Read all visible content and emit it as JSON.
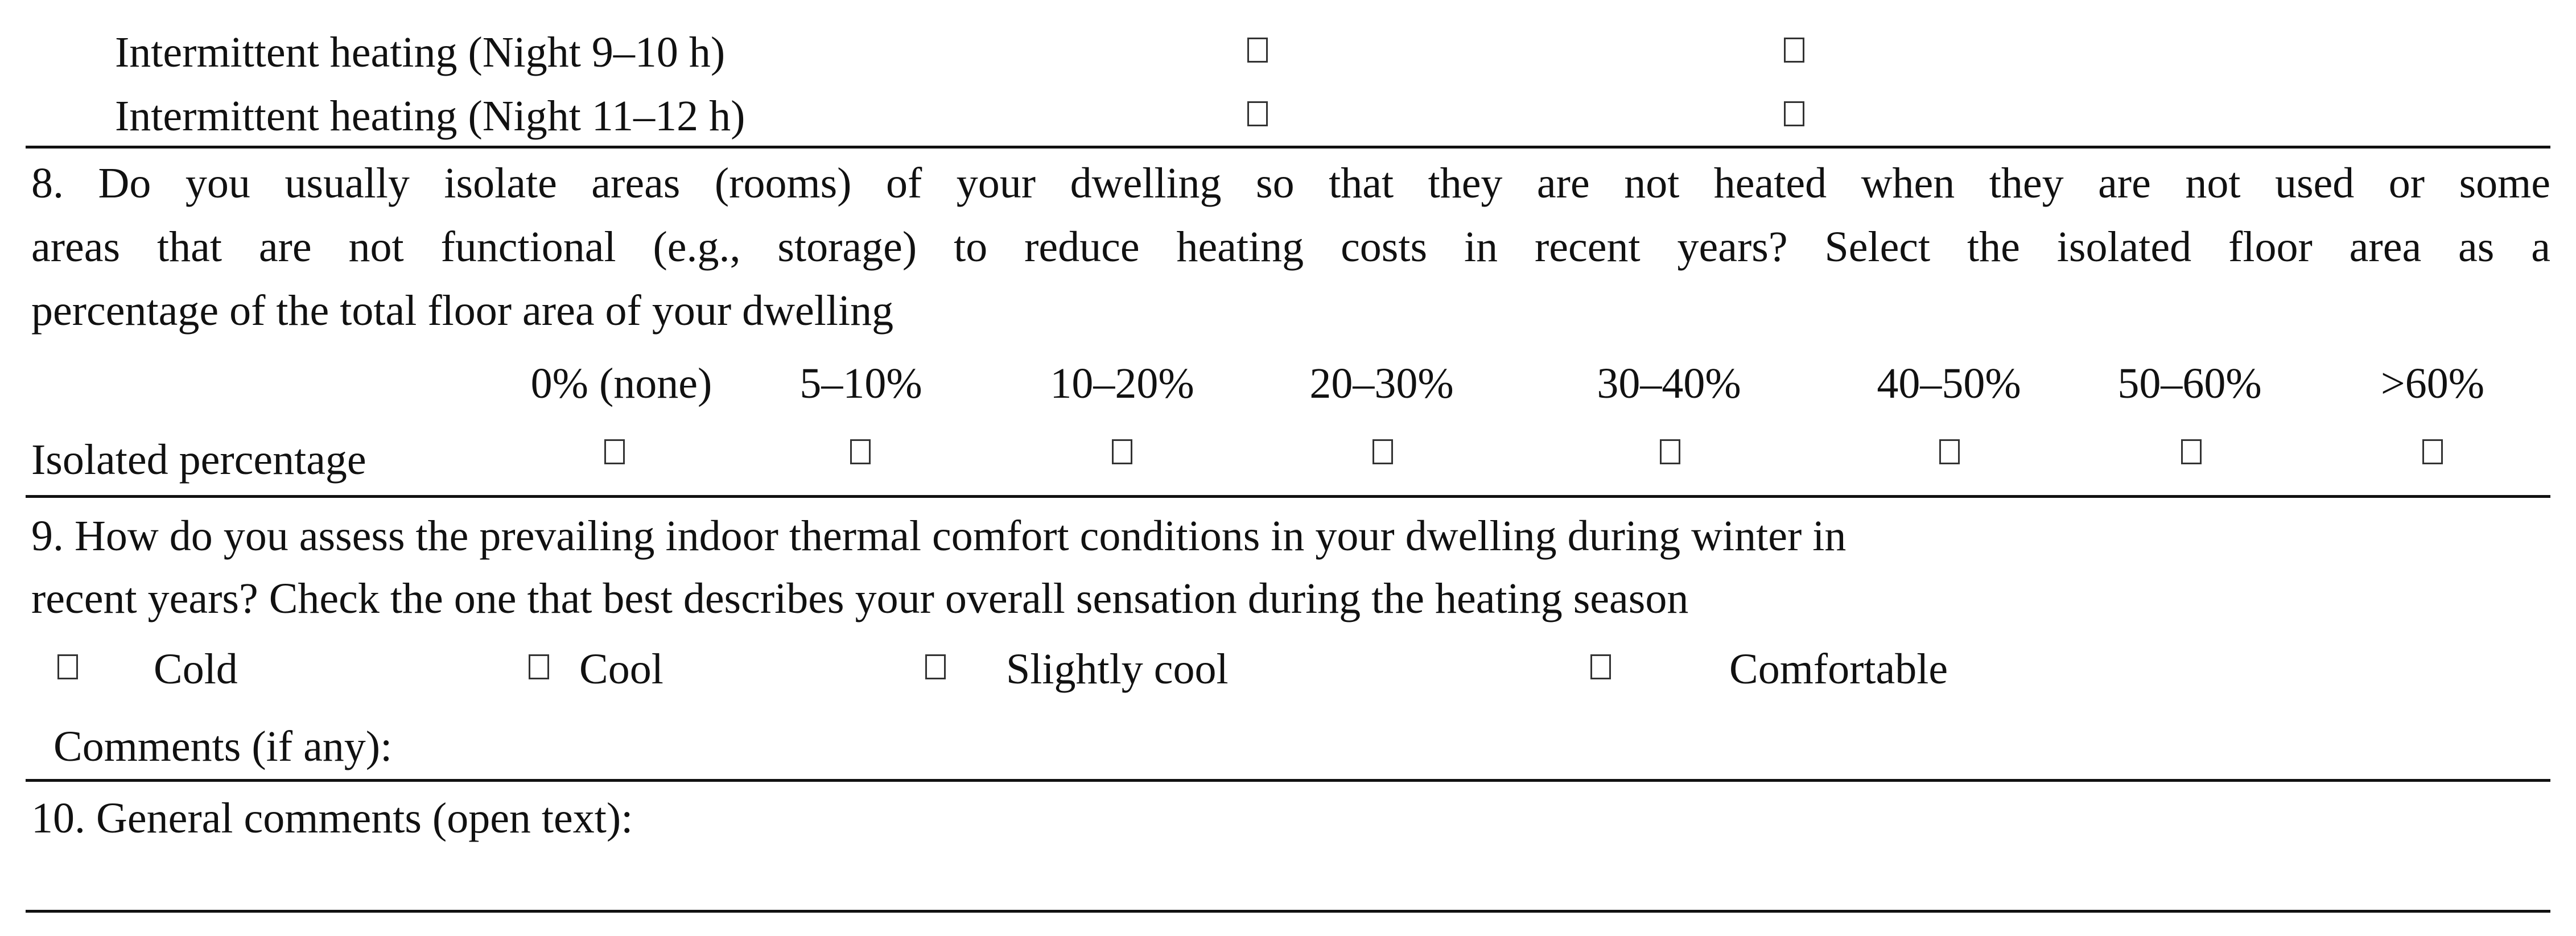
{
  "heating_rows": [
    {
      "label": "Intermittent heating (Night 9–10 h)"
    },
    {
      "label": "Intermittent heating (Night 11–12 h)"
    }
  ],
  "q8": {
    "line1": "8. Do you usually isolate areas (rooms) of your dwelling so that they are not heated when they are not used or some",
    "line2": "areas that are not functional (e.g., storage) to reduce heating costs in recent years? Select the isolated floor area as a",
    "line3": "percentage of the total floor area of your dwelling",
    "options": [
      "0% (none)",
      "5–10%",
      "10–20%",
      "20–30%",
      "30–40%",
      "40–50%",
      "50–60%",
      ">60%"
    ],
    "row_label": "Isolated percentage"
  },
  "q9": {
    "line1": "9. How do you assess the prevailing indoor thermal comfort conditions in your dwelling during winter in",
    "line2": "recent years? Check the one that best describes your overall sensation during the heating season",
    "options": [
      "Cold",
      "Cool",
      "Slightly cool",
      "Comfortable"
    ],
    "comments_label": "Comments (if any):"
  },
  "q10": {
    "label": "10. General comments (open text):"
  }
}
